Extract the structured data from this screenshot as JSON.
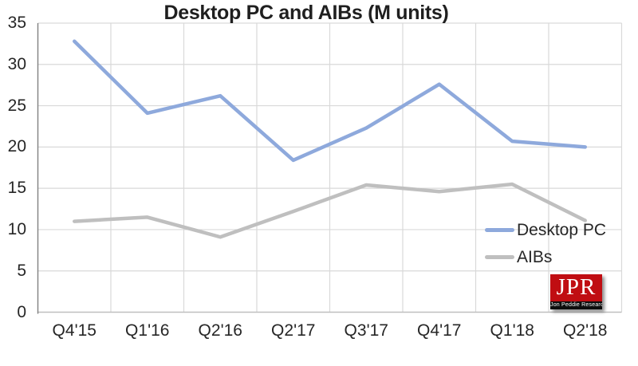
{
  "chart_data": {
    "type": "line",
    "title": "Desktop PC and AIBs (M units)",
    "categories": [
      "Q4'15",
      "Q1'16",
      "Q2'16",
      "Q2'17",
      "Q3'17",
      "Q4'17",
      "Q1'18",
      "Q2'18"
    ],
    "series": [
      {
        "name": "Desktop PC",
        "color": "#8ea9dc",
        "values": [
          32.8,
          24.1,
          26.2,
          18.4,
          22.3,
          27.6,
          20.7,
          20.0
        ]
      },
      {
        "name": "AIBs",
        "color": "#bfbfbf",
        "values": [
          11.0,
          11.5,
          9.1,
          12.2,
          15.4,
          14.6,
          15.5,
          11.1
        ]
      }
    ],
    "ylabel": "",
    "xlabel": "",
    "ylim": [
      0,
      35
    ],
    "y_ticks": [
      0,
      5,
      10,
      15,
      20,
      25,
      30,
      35
    ],
    "grid": "horizontal and vertical, light gray",
    "legend_position": "middle-right, stacked vertically"
  },
  "logo": {
    "acronym": "JPR",
    "caption": "Jon Peddie Research"
  },
  "colors": {
    "desktop_pc_line": "#8ea9dc",
    "aibs_line": "#bfbfbf",
    "gridline": "#d9d9d9",
    "text": "#262626",
    "logo_red": "#c00d12"
  }
}
